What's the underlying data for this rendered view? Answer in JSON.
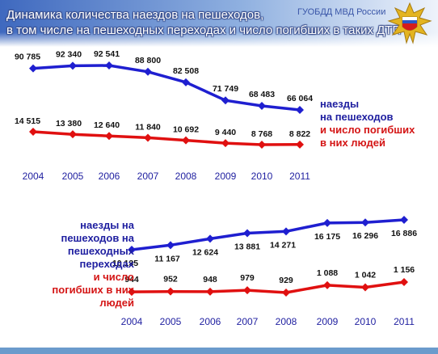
{
  "header": {
    "title_line1": "Динамика количества наездов на пешеходов,",
    "title_line2": "в том числе на пешеходных переходах и число погибших в таких  ДТП",
    "org": "ГУОБДД МВД России"
  },
  "legend_top": {
    "blue_line1": "наезды",
    "blue_line2": "на пешеходов",
    "red_line1": "и число погибших",
    "red_line2": "в них людей"
  },
  "legend_bottom": {
    "blue_line1": "наезды на",
    "blue_line2": "пешеходов на",
    "blue_line3": "пешеходных",
    "blue_line4": "переходах",
    "red_line1": "и число",
    "red_line2": "погибших в них",
    "red_line3": "людей"
  },
  "colors": {
    "blue": "#1f1fd0",
    "red": "#e01010",
    "title_bg": "#5b7fc4"
  },
  "chart_data": [
    {
      "type": "line",
      "categories": [
        "2004",
        "2005",
        "2006",
        "2007",
        "2008",
        "2009",
        "2010",
        "2011"
      ],
      "series": [
        {
          "values": [
            90785,
            92340,
            92541,
            88800,
            82508,
            71749,
            68483,
            66064
          ],
          "labels": [
            "90 785",
            "92 340",
            "92 541",
            "88 800",
            "82 508",
            "71 749",
            "68 483",
            "66 064"
          ]
        },
        {
          "values": [
            14515,
            13380,
            12640,
            11840,
            10692,
            9440,
            8768,
            8822
          ],
          "labels": [
            "14 515",
            "13 380",
            "12 640",
            "11 840",
            "10 692",
            "9 440",
            "8 768",
            "8 822"
          ]
        }
      ]
    },
    {
      "type": "line",
      "categories": [
        "2004",
        "2005",
        "2006",
        "2007",
        "2008",
        "2009",
        "2010",
        "2011"
      ],
      "series": [
        {
          "values": [
            10135,
            11167,
            12624,
            13881,
            14271,
            16175,
            16296,
            16886
          ],
          "labels": [
            "10 135",
            "11 167",
            "12 624",
            "13 881",
            "14 271",
            "16 175",
            "16 296",
            "16 886"
          ]
        },
        {
          "values": [
            944,
            952,
            948,
            979,
            929,
            1088,
            1042,
            1156
          ],
          "labels": [
            "944",
            "952",
            "948",
            "979",
            "929",
            "1 088",
            "1 042",
            "1 156"
          ]
        }
      ]
    }
  ]
}
